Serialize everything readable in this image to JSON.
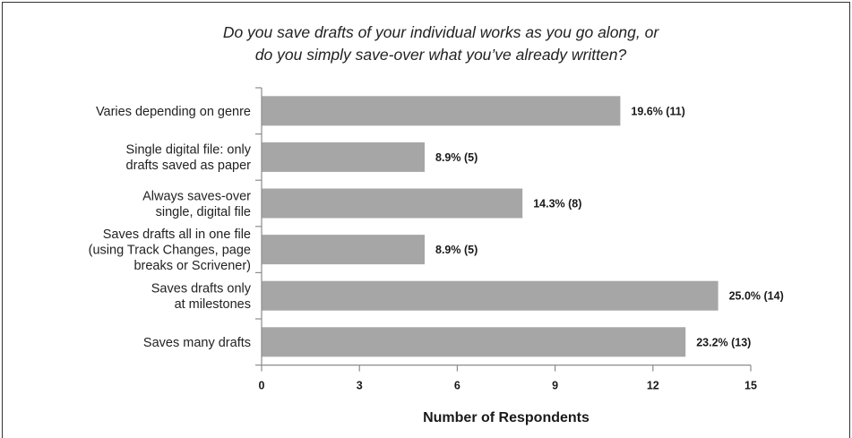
{
  "chart_data": {
    "type": "bar",
    "orientation": "horizontal",
    "title_lines": [
      "Do you save drafts of your individual works as you go along, or",
      "do you simply save-over what you’ve already written?"
    ],
    "categories": [
      [
        "Varies depending on genre"
      ],
      [
        "Single digital file: only",
        "drafts saved as paper"
      ],
      [
        "Always saves-over",
        "single, digital file"
      ],
      [
        "Saves drafts all in one file",
        "(using Track Changes, page",
        "breaks or Scrivener)"
      ],
      [
        "Saves drafts only",
        "at milestones"
      ],
      [
        "Saves many drafts"
      ]
    ],
    "values": [
      11,
      5,
      8,
      5,
      14,
      13
    ],
    "data_labels": [
      "19.6% (11)",
      "8.9% (5)",
      "14.3% (8)",
      "8.9% (5)",
      "25.0% (14)",
      "23.2% (13)"
    ],
    "xlabel": "Number of Respondents",
    "xlim": [
      0,
      15
    ],
    "xticks": [
      0,
      3,
      6,
      9,
      12,
      15
    ],
    "grid": false,
    "legend": "none",
    "colors": {
      "bar": "#a6a6a6",
      "axis": "#8c8c8c",
      "text": "#222222"
    }
  }
}
